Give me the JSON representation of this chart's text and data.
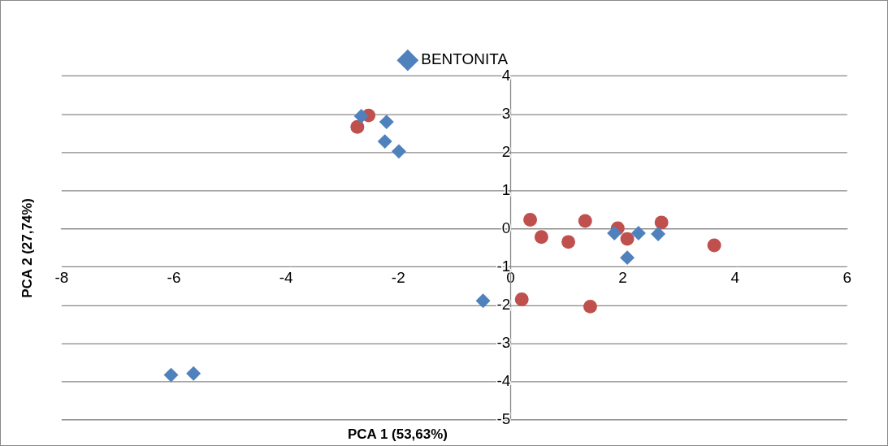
{
  "chart_data": {
    "type": "scatter",
    "xlabel": "PCA 1 (53,63%)",
    "ylabel": "PCA 2 (27,74%)",
    "xlim": [
      -8,
      6
    ],
    "xticks": [
      -8,
      -6,
      -4,
      -2,
      0,
      2,
      4,
      6
    ],
    "ylim": [
      -5,
      4
    ],
    "yticks": [
      -5,
      -4,
      -3,
      -2,
      -1,
      0,
      1,
      2,
      3,
      4
    ],
    "grid": "y",
    "legend": "top",
    "series": [
      {
        "name": "BENTONITA",
        "color": "#4f81bd",
        "marker": "diamond",
        "x": [
          -2.66,
          -2.21,
          -2.24,
          -1.99,
          -6.05,
          -5.65,
          -0.49,
          1.85,
          2.28,
          2.63,
          2.08
        ],
        "values": [
          2.95,
          2.8,
          2.29,
          2.03,
          -3.82,
          -3.78,
          -1.88,
          -0.11,
          -0.11,
          -0.13,
          -0.75
        ]
      },
      {
        "color": "#c0504d",
        "marker": "circle",
        "x": [
          -2.73,
          -2.53,
          0.35,
          0.55,
          1.03,
          1.33,
          1.91,
          2.08,
          2.69,
          3.63,
          0.2,
          1.42
        ],
        "values": [
          2.67,
          2.97,
          0.24,
          -0.21,
          -0.34,
          0.21,
          0.02,
          -0.26,
          0.17,
          -0.43,
          -1.84,
          -2.03
        ]
      }
    ]
  }
}
